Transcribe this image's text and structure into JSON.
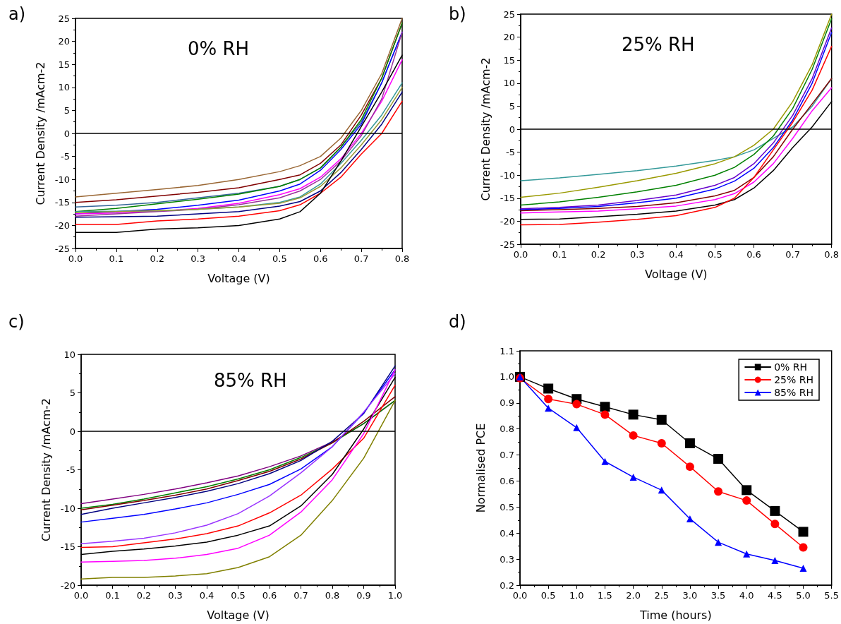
{
  "chart_data": [
    {
      "type": "line",
      "title": "0% RH",
      "annotations": [
        "a)"
      ],
      "xlabel": "Voltage (V)",
      "ylabel": "Current Density /mAcm-2",
      "x": [
        0,
        0.1,
        0.2,
        0.3,
        0.4,
        0.5,
        0.55,
        0.6,
        0.65,
        0.7,
        0.75,
        0.8
      ],
      "xlim": [
        0,
        0.8
      ],
      "xticks": [
        {
          "value": 0,
          "label": "0.0"
        },
        0.1,
        0.2,
        0.3,
        0.4,
        0.5,
        0.6,
        0.7,
        0.8
      ],
      "ylim": [
        -25,
        25
      ],
      "yticks": [
        -25,
        -20,
        -15,
        -10,
        -5,
        0,
        5,
        10,
        15,
        20,
        25
      ],
      "ref_lines": [
        {
          "axis": "y",
          "value": 0,
          "color": "#000000"
        }
      ],
      "grid": false,
      "legend": false,
      "series": [
        {
          "color": "#996633",
          "values": [
            -13.8,
            -13,
            -12.2,
            -11.3,
            -10,
            -8.3,
            -7,
            -5,
            -1,
            5,
            13,
            25
          ]
        },
        {
          "color": "#800000",
          "values": [
            -15,
            -14.4,
            -13.6,
            -12.8,
            -11.8,
            -10,
            -9,
            -6.5,
            -2.5,
            4,
            12,
            24
          ]
        },
        {
          "color": "#336699",
          "values": [
            -16,
            -15.6,
            -15,
            -14,
            -13,
            -11.5,
            -10,
            -7.5,
            -3,
            2.5,
            11,
            22
          ]
        },
        {
          "color": "#008000",
          "values": [
            -17,
            -16.3,
            -15.3,
            -14.3,
            -13.2,
            -11.5,
            -10,
            -7.5,
            -3,
            3,
            12,
            24
          ]
        },
        {
          "color": "#0000ff",
          "values": [
            -17.5,
            -17,
            -16.5,
            -15.6,
            -14.5,
            -12.5,
            -11,
            -8,
            -3.5,
            2,
            11,
            22
          ]
        },
        {
          "color": "#ff00ff",
          "values": [
            -17.5,
            -17.3,
            -16.9,
            -16.3,
            -15.2,
            -13.3,
            -12,
            -9.5,
            -5.5,
            0,
            7,
            16
          ]
        },
        {
          "color": "#993399",
          "values": [
            -18,
            -17.5,
            -17,
            -16.5,
            -15.5,
            -14,
            -12.5,
            -10,
            -6,
            -0.5,
            7.5,
            22
          ]
        },
        {
          "color": "#339999",
          "values": [
            -17,
            -16.9,
            -16.8,
            -16.5,
            -16,
            -15,
            -13.8,
            -11,
            -6.5,
            -1.5,
            4,
            11
          ]
        },
        {
          "color": "#999933",
          "values": [
            -17.2,
            -17,
            -16.8,
            -16.5,
            -16,
            -15.2,
            -14,
            -11.5,
            -7.5,
            -2.5,
            3,
            10
          ]
        },
        {
          "color": "#000080",
          "values": [
            -18.2,
            -18.1,
            -18,
            -17.5,
            -17,
            -15.8,
            -14.8,
            -12.5,
            -8.5,
            -3.5,
            2,
            9
          ]
        },
        {
          "color": "#ff0000",
          "values": [
            -19.8,
            -19.8,
            -19,
            -18.6,
            -18,
            -16.8,
            -15.5,
            -13,
            -9.5,
            -4.5,
            0,
            7
          ]
        },
        {
          "color": "#000000",
          "values": [
            -21.5,
            -21.5,
            -20.8,
            -20.5,
            -20,
            -18.6,
            -17,
            -13,
            -6,
            1.5,
            9,
            17
          ]
        }
      ]
    },
    {
      "type": "line",
      "title": "25% RH",
      "annotations": [
        "b)"
      ],
      "xlabel": "Voltage (V)",
      "ylabel": "Current Density /mAcm-2",
      "x": [
        0,
        0.1,
        0.2,
        0.3,
        0.4,
        0.5,
        0.55,
        0.6,
        0.65,
        0.7,
        0.75,
        0.8
      ],
      "xlim": [
        0,
        0.8
      ],
      "xticks": [
        {
          "value": 0,
          "label": "0.0"
        },
        0.1,
        0.2,
        0.3,
        0.4,
        0.5,
        0.6,
        0.7,
        0.8
      ],
      "ylim": [
        -25,
        25
      ],
      "yticks": [
        -25,
        -20,
        -15,
        -10,
        -5,
        0,
        5,
        10,
        15,
        20,
        25
      ],
      "ref_lines": [
        {
          "axis": "y",
          "value": 0,
          "color": "#000000"
        }
      ],
      "grid": false,
      "legend": false,
      "series": [
        {
          "color": "#339999",
          "values": [
            -11.2,
            -10.6,
            -9.8,
            -9,
            -8,
            -6.8,
            -6,
            -4.5,
            -2,
            0.5,
            5,
            11
          ]
        },
        {
          "color": "#999900",
          "values": [
            -14.8,
            -13.9,
            -12.6,
            -11.2,
            -9.6,
            -7.5,
            -6,
            -3.5,
            0,
            6,
            14,
            25
          ]
        },
        {
          "color": "#008000",
          "values": [
            -16.5,
            -15.8,
            -14.8,
            -13.6,
            -12.2,
            -10,
            -8.3,
            -5.5,
            -1.5,
            4.5,
            13,
            24
          ]
        },
        {
          "color": "#6600cc",
          "values": [
            -17.3,
            -17,
            -16.5,
            -15.5,
            -14.3,
            -12.2,
            -10.5,
            -7.5,
            -3,
            3,
            11,
            22
          ]
        },
        {
          "color": "#0000ff",
          "values": [
            -17.5,
            -17.2,
            -16.8,
            -16,
            -15,
            -13,
            -11.3,
            -8.5,
            -4,
            2,
            10,
            21
          ]
        },
        {
          "color": "#800000",
          "values": [
            -17.7,
            -17.5,
            -17.2,
            -16.8,
            -16,
            -14.5,
            -13.3,
            -10.5,
            -6,
            0,
            5.5,
            11
          ]
        },
        {
          "color": "#ff00ff",
          "values": [
            -18.2,
            -18,
            -17.8,
            -17.3,
            -16.7,
            -15.3,
            -14,
            -11.5,
            -7.5,
            -2,
            4,
            9
          ]
        },
        {
          "color": "#000000",
          "values": [
            -19.6,
            -19.5,
            -19,
            -18.5,
            -17.8,
            -16.5,
            -15.3,
            -12.8,
            -9,
            -4,
            0.5,
            6
          ]
        },
        {
          "color": "#ff0000",
          "values": [
            -20.8,
            -20.7,
            -20.2,
            -19.6,
            -18.8,
            -17,
            -15,
            -10.5,
            -4.5,
            1.5,
            8.5,
            18
          ]
        }
      ]
    },
    {
      "type": "line",
      "title": "85% RH",
      "annotations": [
        "c)"
      ],
      "xlabel": "Voltage (V)",
      "ylabel": "Current Density /mAcm-2",
      "x": [
        0,
        0.1,
        0.2,
        0.3,
        0.4,
        0.5,
        0.6,
        0.7,
        0.8,
        0.9,
        1.0
      ],
      "xlim": [
        0,
        1
      ],
      "xticks": [
        {
          "value": 0,
          "label": "0.0"
        },
        0.1,
        0.2,
        0.3,
        0.4,
        0.5,
        0.6,
        0.7,
        0.8,
        0.9,
        {
          "value": 1,
          "label": "1.0"
        }
      ],
      "ylim": [
        -20,
        10
      ],
      "yticks": [
        -20,
        -15,
        -10,
        -5,
        0,
        5,
        10
      ],
      "ref_lines": [
        {
          "axis": "y",
          "value": 0,
          "color": "#000000"
        }
      ],
      "grid": false,
      "legend": false,
      "series": [
        {
          "color": "#800080",
          "values": [
            -9.4,
            -8.8,
            -8.2,
            -7.5,
            -6.7,
            -5.8,
            -4.6,
            -3.2,
            -1.4,
            1,
            4
          ]
        },
        {
          "color": "#008000",
          "values": [
            -10,
            -9.5,
            -8.8,
            -8,
            -7.2,
            -6.2,
            -5,
            -3.4,
            -1.5,
            1,
            4
          ]
        },
        {
          "color": "#800000",
          "values": [
            -10.2,
            -9.6,
            -9,
            -8.3,
            -7.5,
            -6.4,
            -5.2,
            -3.6,
            -1.5,
            1.3,
            4.5
          ]
        },
        {
          "color": "#000080",
          "values": [
            -10.8,
            -10,
            -9.3,
            -8.6,
            -7.8,
            -6.8,
            -5.5,
            -3.8,
            -1.3,
            2.3,
            8.5
          ]
        },
        {
          "color": "#0000ff",
          "values": [
            -11.8,
            -11.3,
            -10.8,
            -10.1,
            -9.3,
            -8.2,
            -6.9,
            -4.9,
            -2,
            2.4,
            8
          ]
        },
        {
          "color": "#9933ff",
          "values": [
            -14.6,
            -14.3,
            -13.9,
            -13.2,
            -12.2,
            -10.7,
            -8.4,
            -5.4,
            -2,
            2.5,
            7.5
          ]
        },
        {
          "color": "#ff0000",
          "values": [
            -15.1,
            -15,
            -14.5,
            -14,
            -13.3,
            -12.3,
            -10.6,
            -8.3,
            -4.9,
            -0.9,
            6
          ]
        },
        {
          "color": "#000000",
          "values": [
            -16,
            -15.6,
            -15.3,
            -14.9,
            -14.4,
            -13.5,
            -12.3,
            -9.7,
            -5.6,
            0.3,
            7
          ]
        },
        {
          "color": "#ff00ff",
          "values": [
            -17,
            -16.9,
            -16.8,
            -16.5,
            -16,
            -15.2,
            -13.5,
            -10.5,
            -6.3,
            -0.3,
            8
          ]
        },
        {
          "color": "#808000",
          "values": [
            -19.2,
            -19,
            -19,
            -18.8,
            -18.5,
            -17.7,
            -16.3,
            -13.5,
            -9,
            -3.5,
            4
          ]
        }
      ]
    },
    {
      "type": "line",
      "annotations": [
        "d)"
      ],
      "xlabel": "Time (hours)",
      "ylabel": "Normalised PCE",
      "x": [
        0,
        0.5,
        1,
        1.5,
        2,
        2.5,
        3,
        3.5,
        4,
        4.5,
        5
      ],
      "xlim": [
        0,
        5.5
      ],
      "xticks": [
        {
          "value": 0,
          "label": "0.0"
        },
        0.5,
        {
          "value": 1,
          "label": "1.0"
        },
        1.5,
        {
          "value": 2,
          "label": "2.0"
        },
        2.5,
        {
          "value": 3,
          "label": "3.0"
        },
        3.5,
        {
          "value": 4,
          "label": "4.0"
        },
        4.5,
        {
          "value": 5,
          "label": "5.0"
        },
        5.5
      ],
      "ylim": [
        0.2,
        1.1
      ],
      "yticks": [
        0.2,
        0.3,
        0.4,
        0.5,
        0.6,
        0.7,
        0.8,
        0.9,
        {
          "value": 1,
          "label": "1.0"
        },
        1.1
      ],
      "grid": false,
      "legend": "top right",
      "series": [
        {
          "name": "0% RH",
          "color": "#000000",
          "marker": "square",
          "values": [
            1.0,
            0.955,
            0.915,
            0.885,
            0.855,
            0.835,
            0.745,
            0.685,
            0.565,
            0.485,
            0.405
          ]
        },
        {
          "name": "25% RH",
          "color": "#ff0000",
          "marker": "circle",
          "values": [
            0.995,
            0.915,
            0.895,
            0.855,
            0.775,
            0.745,
            0.655,
            0.56,
            0.525,
            0.435,
            0.345
          ]
        },
        {
          "name": "85% RH",
          "color": "#0000ff",
          "marker": "triangle",
          "values": [
            1.0,
            0.88,
            0.805,
            0.675,
            0.615,
            0.565,
            0.455,
            0.365,
            0.32,
            0.295,
            0.265
          ]
        }
      ]
    }
  ]
}
